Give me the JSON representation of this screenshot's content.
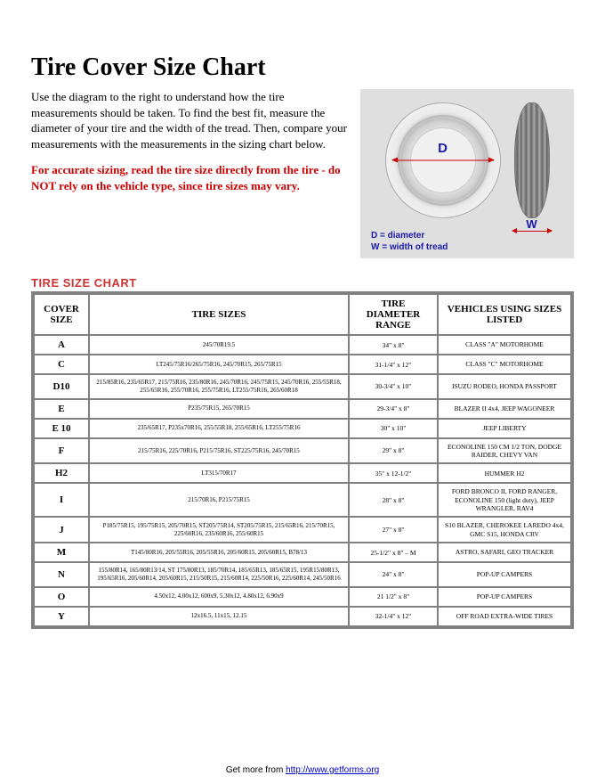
{
  "title": "Tire Cover Size Chart",
  "intro": "Use the diagram to the right to understand how the tire measurements should be taken. To find the best fit, measure the diameter of your tire and the width of the tread. Then, compare your measurements with the measurements in the sizing chart below.",
  "warning": "For accurate sizing, read the tire size directly from the tire - do NOT rely on the vehicle type, since tire sizes may vary.",
  "diagram": {
    "d_label": "D",
    "w_label": "W",
    "legend_d": "D = diameter",
    "legend_w": "W = width of tread"
  },
  "chart_heading": "TIRE SIZE CHART",
  "columns": {
    "cover": "COVER SIZE",
    "sizes": "TIRE SIZES",
    "range": "TIRE DIAMETER RANGE",
    "vehicles": "VEHICLES USING SIZES LISTED"
  },
  "rows": [
    {
      "cover": "A",
      "sizes": "245/70R19.5",
      "range": "34\" x 8\"",
      "vehicles": "CLASS \"A\" MOTORHOME"
    },
    {
      "cover": "C",
      "sizes": "LT245/75R16/265/75R16, 245/70R15, 265/75R15",
      "range": "31-1/4\" x 12\"",
      "vehicles": "CLASS \"C\" MOTORHOME"
    },
    {
      "cover": "D10",
      "sizes": "215/85R16, 235/65R17, 215/75R16, 235/80R16, 245/70R16, 245/75R15, 245/70R16, 255/55R18, 255/65R16, 255/70R16, 255/75R16, LT255/75R16, 265/60R18",
      "range": "30-3/4\" x 10\"",
      "vehicles": "ISUZU RODEO, HONDA PASSPORT"
    },
    {
      "cover": "E",
      "sizes": "P235/75R15, 265/70R15",
      "range": "29-3/4\" x 8\"",
      "vehicles": "BLAZER II 4x4, JEEP WAGONEER"
    },
    {
      "cover": "E 10",
      "sizes": "235/65R17, P235x70R16, 255/55R18, 255/65R16, LT255/75R16",
      "range": "30\" x 10\"",
      "vehicles": "JEEP LIBERTY"
    },
    {
      "cover": "F",
      "sizes": "215/75R16, 225/70R16, P215/75R16, ST225/75R16, 245/70R15",
      "range": "29\" x 8\"",
      "vehicles": "ECONOLINE 150 CM 1/2 TON, DODGE RAIDER, CHEVY VAN"
    },
    {
      "cover": "H2",
      "sizes": "LT315/70R17",
      "range": "35\" x 12-1/2\"",
      "vehicles": "HUMMER H2"
    },
    {
      "cover": "I",
      "sizes": "215/70R16, P215/75R15",
      "range": "28\" x 8\"",
      "vehicles": "FORD BRONCO II, FORD RANGER, ECONOLINE 150 (light duty), JEEP WRANGLER, RAV4"
    },
    {
      "cover": "J",
      "sizes": "P185/75R15, 195/75R15, 205/70R15, ST205/75R14, ST205/75R15, 215/65R16, 215/70R15,  225/60R16, 235/60R16, 255/60R15",
      "range": "27\" x 8\"",
      "vehicles": "S10 BLAZER, CHEROKEE LAREDO 4x4, GMC S15, HONDA CRV"
    },
    {
      "cover": "M",
      "sizes": "T145/80R16, 205/55R16, 205/55R16, 205/60R15, 205/60R15, B78/13",
      "range": "25-1/2\" x 8\" – M",
      "vehicles": "ASTRO, SAFARI, GEO TRACKER"
    },
    {
      "cover": "N",
      "sizes": "155/80R14, 165/80R13/14, ST 175/80R13, 185/70R14, 185/65R13, 185/65R15, 195R15/80R13, 195/65R16, 205/60R14, 205/60R15, 215/50R15, 215/60R14, 225/50R16, 225/60R14, 245/50R16",
      "range": "24\" x 8\"",
      "vehicles": "POP-UP CAMPERS"
    },
    {
      "cover": "O",
      "sizes": "4.50x12, 4.00x12, 600x9, 5.30x12, 4.80x12, 6.90x9",
      "range": "21 1/2\" x 8\"",
      "vehicles": "POP-UP CAMPERS"
    },
    {
      "cover": "Y",
      "sizes": "12x16.5, 11x15, 12.15",
      "range": "32-1/4\" x 12\"",
      "vehicles": "OFF ROAD EXTRA-WIDE TIRES"
    }
  ],
  "footer": {
    "prefix": "Get more from ",
    "url": "http://www.getforms.org"
  }
}
